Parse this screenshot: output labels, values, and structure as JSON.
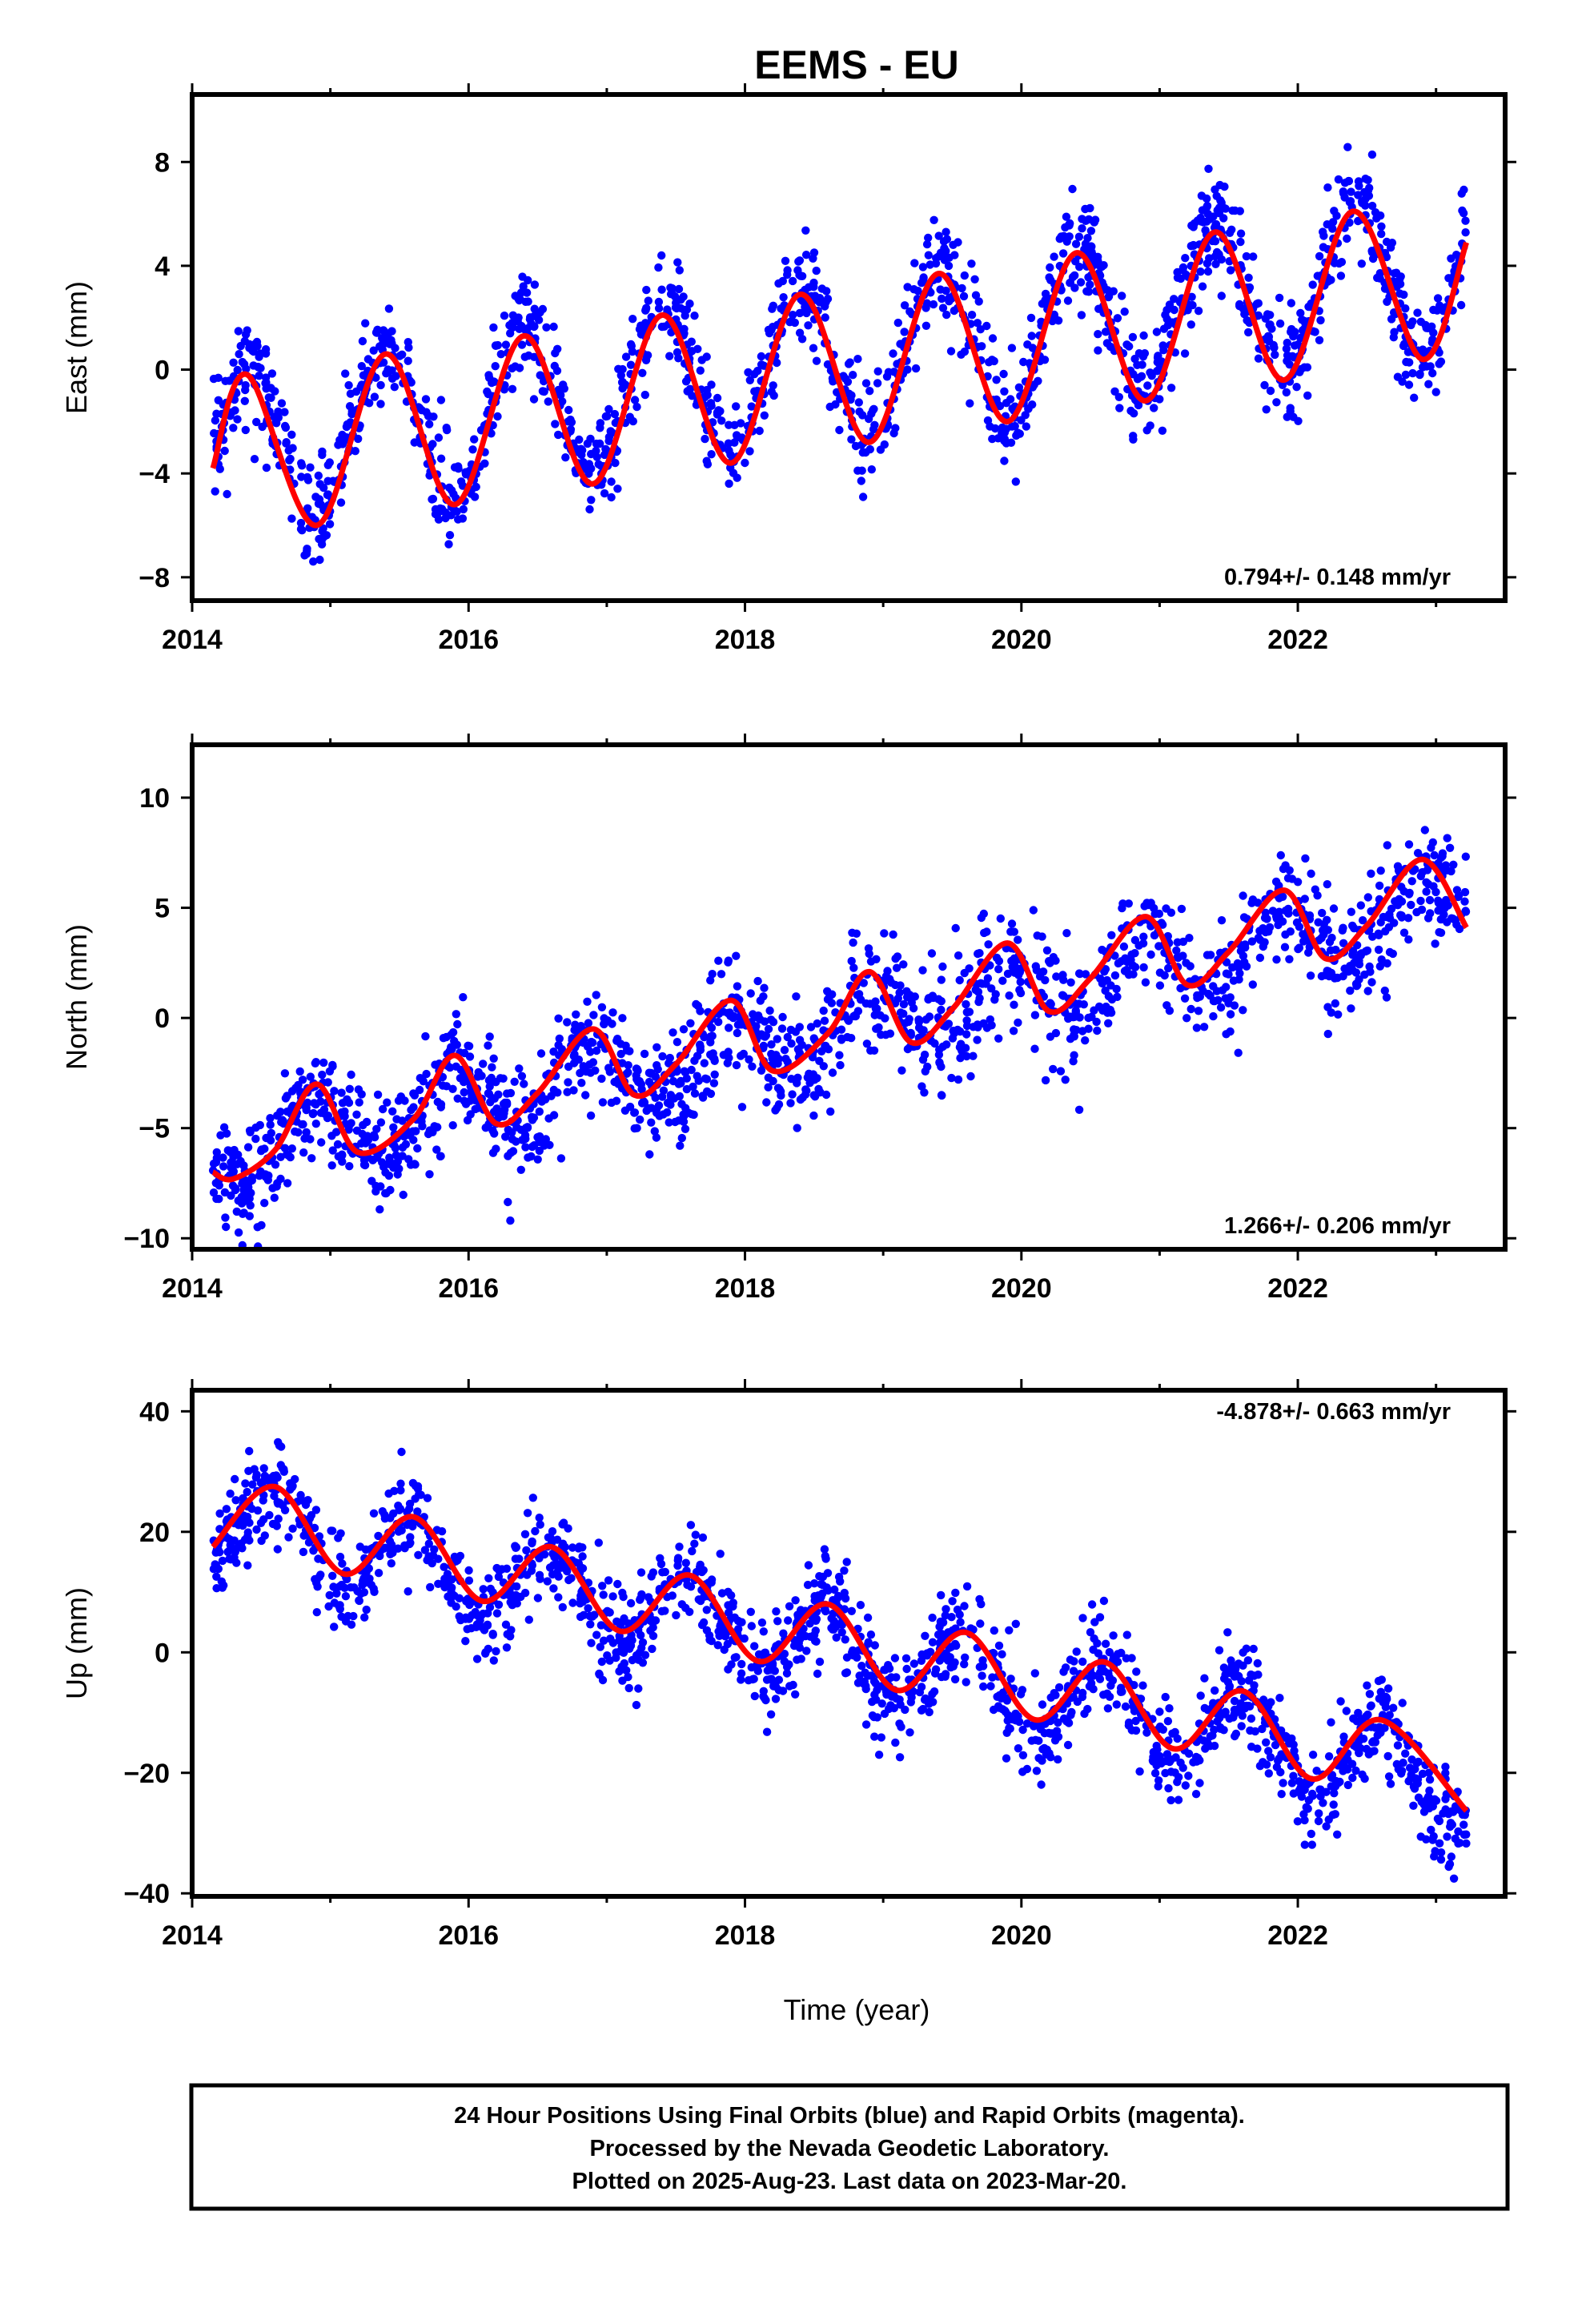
{
  "title": "EEMS - EU",
  "xlabel": "Time (year)",
  "caption": [
    "24 Hour Positions Using Final Orbits (blue) and Rapid Orbits (magenta).",
    "Processed by the Nevada Geodetic Laboratory.",
    "Plotted on 2025-Aug-23. Last data on 2023-Mar-20."
  ],
  "colors": {
    "points": "#0000ff",
    "fit": "#ff0000",
    "frame": "#000000"
  },
  "chart_data": [
    {
      "type": "scatter",
      "ylabel": "East (mm)",
      "rate_label": "0.794+/- 0.148 mm/yr",
      "xlim": [
        2014.0,
        2023.5
      ],
      "ylim": [
        -8.9,
        10.6
      ],
      "xticks": [
        2014,
        2016,
        2018,
        2020,
        2022
      ],
      "xtick_labels": [
        "2014",
        "2016",
        "2018",
        "2020",
        "2022"
      ],
      "yticks": [
        -8,
        -4,
        0,
        4,
        8
      ],
      "ytick_labels": [
        "−8",
        "−4",
        "0",
        "4",
        "8"
      ],
      "series": [
        {
          "role": "daily positions",
          "color": "#0000ff",
          "x_range": [
            2014.15,
            2023.22
          ],
          "trend_at_start": -3.2,
          "rate": 0.794,
          "annual_amplitude": 3.0,
          "annual_peak_phase": 0.4,
          "noise_sd": 1.0
        },
        {
          "role": "model fit",
          "color": "#ff0000",
          "x": [
            2014.15,
            2014.4,
            2014.9,
            2015.4,
            2015.9,
            2016.4,
            2016.9,
            2017.4,
            2017.9,
            2018.4,
            2018.9,
            2019.4,
            2019.9,
            2020.4,
            2020.9,
            2021.4,
            2021.9,
            2022.4,
            2022.9,
            2023.22
          ],
          "y": [
            -3.8,
            -0.2,
            -6.0,
            0.6,
            -5.2,
            1.3,
            -4.4,
            2.1,
            -3.6,
            2.9,
            -2.8,
            3.7,
            -2.0,
            4.5,
            -1.2,
            5.3,
            -0.4,
            6.1,
            0.4,
            4.9
          ]
        }
      ]
    },
    {
      "type": "scatter",
      "ylabel": "North (mm)",
      "rate_label": "1.266+/- 0.206 mm/yr",
      "xlim": [
        2014.0,
        2023.5
      ],
      "ylim": [
        -10.5,
        12.4
      ],
      "xticks": [
        2014,
        2016,
        2018,
        2020,
        2022
      ],
      "xtick_labels": [
        "2014",
        "2016",
        "2018",
        "2020",
        "2022"
      ],
      "yticks": [
        -10,
        -5,
        0,
        5,
        10
      ],
      "ytick_labels": [
        "−10",
        "−5",
        "0",
        "5",
        "10"
      ],
      "series": [
        {
          "role": "daily positions",
          "color": "#0000ff",
          "x_range": [
            2014.15,
            2023.22
          ],
          "trend_at_start": -6.3,
          "rate": 1.266,
          "annual_amplitude": 1.5,
          "annual_peak_phase": 0.9,
          "noise_sd": 1.3
        },
        {
          "role": "model fit",
          "color": "#ff0000",
          "x": [
            2014.15,
            2014.3,
            2014.6,
            2014.9,
            2015.2,
            2015.6,
            2015.9,
            2016.2,
            2016.5,
            2016.9,
            2017.2,
            2017.5,
            2017.9,
            2018.2,
            2018.6,
            2018.9,
            2019.2,
            2019.5,
            2019.9,
            2020.2,
            2020.5,
            2020.9,
            2021.2,
            2021.5,
            2021.9,
            2022.2,
            2022.5,
            2022.9,
            2023.22
          ],
          "y": [
            -7.0,
            -7.3,
            -6.0,
            -3.0,
            -6.1,
            -4.6,
            -1.7,
            -4.8,
            -3.4,
            -0.5,
            -3.5,
            -2.1,
            0.8,
            -2.4,
            -0.7,
            2.1,
            -1.1,
            0.4,
            3.4,
            0.3,
            1.8,
            4.6,
            1.5,
            3.0,
            5.8,
            2.7,
            4.2,
            7.2,
            4.1
          ]
        }
      ]
    },
    {
      "type": "scatter",
      "ylabel": "Up (mm)",
      "rate_label": "-4.878+/- 0.663 mm/yr",
      "xlim": [
        2014.0,
        2023.5
      ],
      "ylim": [
        -40.5,
        43.5
      ],
      "xticks": [
        2014,
        2016,
        2018,
        2020,
        2022
      ],
      "xtick_labels": [
        "2014",
        "2016",
        "2018",
        "2020",
        "2022"
      ],
      "yticks": [
        -40,
        -20,
        0,
        20,
        40
      ],
      "ytick_labels": [
        "−40",
        "−20",
        "0",
        "20",
        "40"
      ],
      "series": [
        {
          "role": "daily positions",
          "color": "#0000ff",
          "x_range": [
            2014.15,
            2023.22
          ],
          "trend_at_start": 22.5,
          "rate": -4.878,
          "annual_amplitude": 7.2,
          "annual_peak_phase": 0.6,
          "noise_sd": 4.0
        },
        {
          "role": "model fit",
          "color": "#ff0000",
          "x": [
            2014.15,
            2014.6,
            2015.1,
            2015.6,
            2016.1,
            2016.6,
            2017.1,
            2017.6,
            2018.1,
            2018.6,
            2019.1,
            2019.6,
            2020.1,
            2020.6,
            2021.1,
            2021.6,
            2022.1,
            2022.6,
            2023.22
          ],
          "y": [
            17.5,
            27.5,
            13.0,
            22.5,
            8.5,
            17.5,
            3.5,
            12.8,
            -1.5,
            8.0,
            -6.3,
            3.3,
            -11.2,
            -1.6,
            -16.0,
            -6.4,
            -21.0,
            -11.2,
            -26.3
          ]
        }
      ]
    }
  ]
}
